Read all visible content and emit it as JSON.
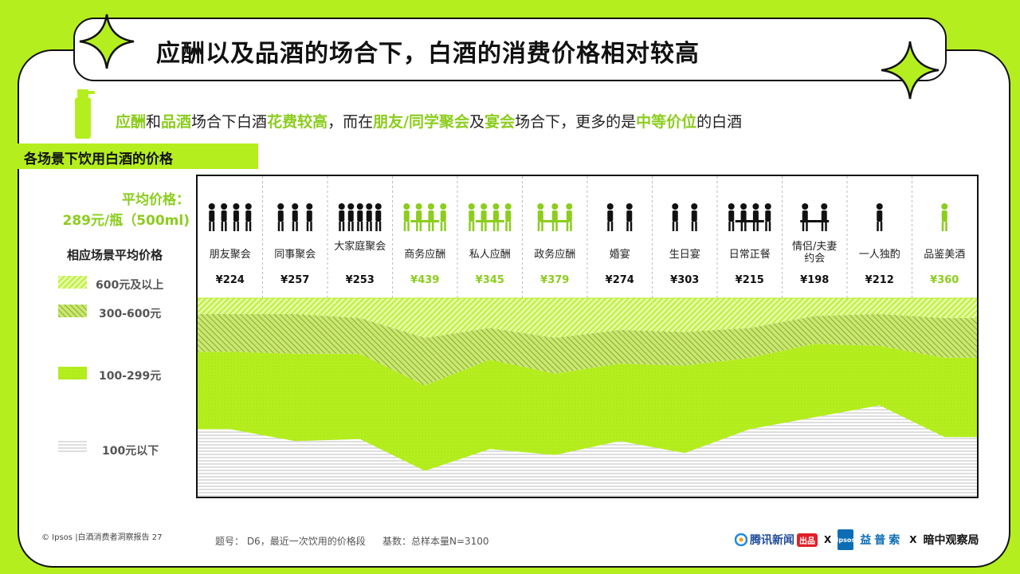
{
  "title": "应酬以及品酒的场合下，白酒的消费价格相对较高",
  "headline": [
    {
      "text": "应酬",
      "hl": true
    },
    {
      "text": "和",
      "hl": false
    },
    {
      "text": "品酒",
      "hl": true
    },
    {
      "text": "场合下白酒",
      "hl": false
    },
    {
      "text": "花费较高",
      "hl": true
    },
    {
      "text": "，而在",
      "hl": false
    },
    {
      "text": "朋友/同学聚会",
      "hl": true
    },
    {
      "text": "及",
      "hl": false
    },
    {
      "text": "宴会",
      "hl": true
    },
    {
      "text": "场合下，更多的是",
      "hl": false
    },
    {
      "text": "中等价位",
      "hl": true
    },
    {
      "text": "的白酒",
      "hl": false
    }
  ],
  "section_label": "各场景下饮用白酒的价格",
  "avg_price": {
    "line1": "平均价格：",
    "line2": "289元/瓶（500ml)"
  },
  "legend": {
    "title": "相应场景平均价格",
    "items": [
      {
        "label": "600元及以上",
        "pattern": "diag-light"
      },
      {
        "label": "300-600元",
        "pattern": "diag-dark"
      },
      {
        "label": "100-299元",
        "pattern": "solid-green"
      },
      {
        "label": "100元以下",
        "pattern": "hlines"
      }
    ]
  },
  "colors": {
    "accent": "#b5ee1e",
    "highlight": "#8ccd1e",
    "dark": "#111111",
    "gray_text": "#555555"
  },
  "chart_data": {
    "type": "area",
    "stacked": true,
    "percent_stacked": true,
    "categories": [
      "朋友聚会",
      "同事聚会",
      "大家庭聚会",
      "商务应酬",
      "私人应酬",
      "政务应酬",
      "婚宴",
      "生日宴",
      "日常正餐",
      "情侣/夫妻约会",
      "一人独酌",
      "品鉴美酒"
    ],
    "prices": [
      "¥224",
      "¥257",
      "¥253",
      "¥439",
      "¥345",
      "¥379",
      "¥274",
      "¥303",
      "¥215",
      "¥198",
      "¥212",
      "¥360"
    ],
    "price_highlight": [
      false,
      false,
      false,
      true,
      true,
      true,
      false,
      false,
      false,
      false,
      false,
      true
    ],
    "icons": [
      "friends-party-icon",
      "colleagues-party-icon",
      "family-party-icon",
      "business-dinner-icon",
      "private-dinner-icon",
      "government-dinner-icon",
      "wedding-icon",
      "birthday-icon",
      "daily-meal-icon",
      "couple-date-icon",
      "drinking-alone-icon",
      "wine-tasting-icon"
    ],
    "series": [
      {
        "name": "100元以下",
        "values": [
          34,
          28,
          29,
          13,
          24,
          21,
          28,
          22,
          34,
          40,
          46,
          30
        ]
      },
      {
        "name": "100-299元",
        "values": [
          39,
          44,
          43,
          43,
          45,
          41,
          39,
          44,
          36,
          37,
          30,
          40
        ]
      },
      {
        "name": "300-600元",
        "values": [
          19,
          20,
          18,
          24,
          16,
          18,
          17,
          17,
          15,
          14,
          16,
          20
        ]
      },
      {
        "name": "600元及以上",
        "values": [
          8,
          8,
          10,
          20,
          15,
          20,
          16,
          17,
          15,
          9,
          8,
          10
        ]
      }
    ],
    "ylim": [
      0,
      100
    ],
    "legend_position": "left"
  },
  "footer": {
    "left": "© Ipsos |白酒消费者洞察报告  27",
    "note": "题号： D6，最近一次饮用的价格段",
    "base": "基数：总样本量N=3100"
  },
  "logos": {
    "tencent": "腾讯新闻",
    "tencent_tag": "出品",
    "x": "X",
    "ipsos": "Ipsos",
    "yipusuo": "益普索",
    "observatory": "暗中观察局"
  }
}
